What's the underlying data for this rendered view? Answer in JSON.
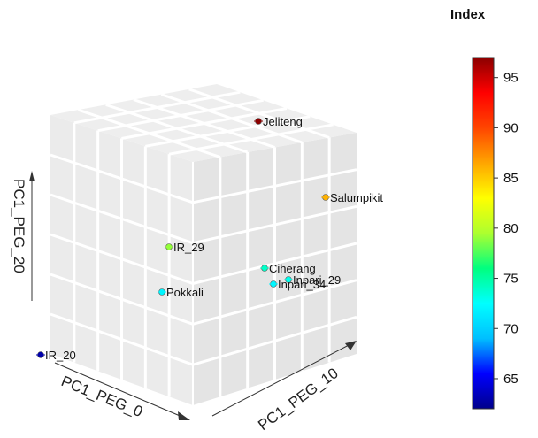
{
  "chart_data": {
    "type": "scatter",
    "title": "",
    "axes": {
      "x_label": "PC1_PEG_0",
      "y_label": "PC1_PEG_10",
      "z_label": "PC1_PEG_20"
    },
    "points": [
      {
        "label": "Jeliteng",
        "index": 97
      },
      {
        "label": "Salumpikit",
        "index": 86
      },
      {
        "label": "IR_29",
        "index": 79
      },
      {
        "label": "Ciherang",
        "index": 74
      },
      {
        "label": "Inpari_29",
        "index": 73
      },
      {
        "label": "Inpari_34",
        "index": 72
      },
      {
        "label": "Pokkali",
        "index": 72
      },
      {
        "label": "IR_20",
        "index": 63
      }
    ],
    "colorbar": {
      "title": "Index",
      "range": [
        62,
        97
      ],
      "ticks": [
        65,
        70,
        75,
        80,
        85,
        90,
        95
      ],
      "colors": [
        "#00008B",
        "#0000FF",
        "#00BFFF",
        "#00FFFF",
        "#00FF7F",
        "#ADFF2F",
        "#FFFF00",
        "#FFA500",
        "#FF4500",
        "#FF0000",
        "#8B0000"
      ]
    },
    "grid": true,
    "legend_position": "right"
  }
}
